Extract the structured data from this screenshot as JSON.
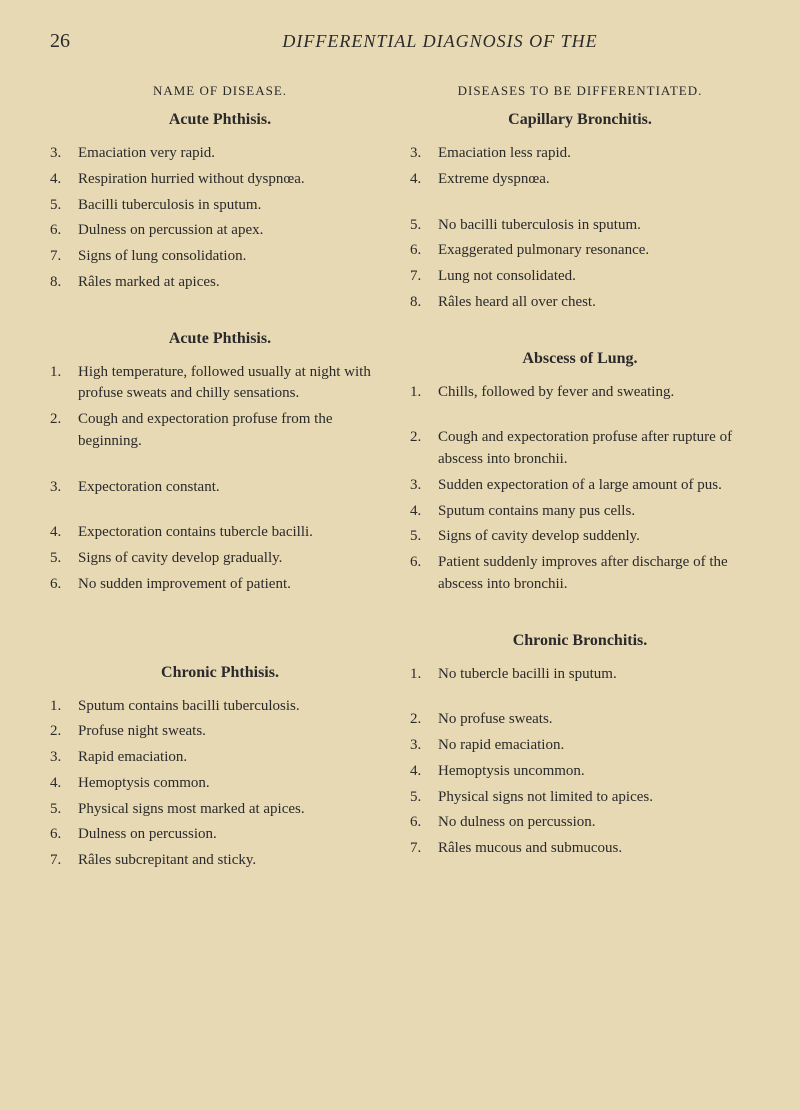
{
  "page_number": "26",
  "page_title": "DIFFERENTIAL DIAGNOSIS OF THE",
  "left_column_header": "NAME OF DISEASE.",
  "right_column_header": "DISEASES TO BE DIFFERENTIATED.",
  "section1": {
    "left_heading": "Acute Phthisis.",
    "right_heading": "Capillary Bronchitis.",
    "left_items": [
      {
        "num": "3.",
        "text": "Emaciation very rapid."
      },
      {
        "num": "4.",
        "text": "Respiration hurried without dyspnœa."
      },
      {
        "num": "5.",
        "text": "Bacilli tuberculosis in sputum."
      },
      {
        "num": "6.",
        "text": "Dulness on percussion at apex."
      },
      {
        "num": "7.",
        "text": "Signs of lung consolidation."
      },
      {
        "num": "8.",
        "text": "Râles marked at apices."
      }
    ],
    "right_items": [
      {
        "num": "3.",
        "text": "Emaciation less rapid."
      },
      {
        "num": "4.",
        "text": "Extreme dyspnœa."
      },
      {
        "num": "5.",
        "text": "No bacilli tuberculosis in sputum."
      },
      {
        "num": "6.",
        "text": "Exaggerated pulmonary resonance."
      },
      {
        "num": "7.",
        "text": "Lung not consolidated."
      },
      {
        "num": "8.",
        "text": "Râles heard all over chest."
      }
    ]
  },
  "section2": {
    "left_heading": "Acute Phthisis.",
    "right_heading": "Abscess of Lung.",
    "left_items": [
      {
        "num": "1.",
        "text": "High temperature, followed usually at night with profuse sweats and chilly sensations."
      },
      {
        "num": "2.",
        "text": "Cough and expectoration profuse from the beginning."
      },
      {
        "num": "3.",
        "text": "Expectoration constant."
      },
      {
        "num": "4.",
        "text": "Expectoration contains tubercle bacilli."
      },
      {
        "num": "5.",
        "text": "Signs of cavity develop gradually."
      },
      {
        "num": "6.",
        "text": "No sudden improvement of patient."
      }
    ],
    "right_items": [
      {
        "num": "1.",
        "text": "Chills, followed by fever and sweating."
      },
      {
        "num": "2.",
        "text": "Cough and expectoration profuse after rupture of abscess into bronchii."
      },
      {
        "num": "3.",
        "text": "Sudden expectoration of a large amount of pus."
      },
      {
        "num": "4.",
        "text": "Sputum contains many pus cells."
      },
      {
        "num": "5.",
        "text": "Signs of cavity develop suddenly."
      },
      {
        "num": "6.",
        "text": "Patient suddenly improves after discharge of the abscess into bronchii."
      }
    ]
  },
  "section3": {
    "left_heading": "Chronic Phthisis.",
    "right_heading": "Chronic Bronchitis.",
    "left_items": [
      {
        "num": "1.",
        "text": "Sputum contains bacilli tuberculosis."
      },
      {
        "num": "2.",
        "text": "Profuse night sweats."
      },
      {
        "num": "3.",
        "text": "Rapid emaciation."
      },
      {
        "num": "4.",
        "text": "Hemoptysis common."
      },
      {
        "num": "5.",
        "text": "Physical signs most marked at apices."
      },
      {
        "num": "6.",
        "text": "Dulness on percussion."
      },
      {
        "num": "7.",
        "text": "Râles subcrepitant and sticky."
      }
    ],
    "right_items": [
      {
        "num": "1.",
        "text": "No tubercle bacilli in sputum."
      },
      {
        "num": "2.",
        "text": "No profuse sweats."
      },
      {
        "num": "3.",
        "text": "No rapid emaciation."
      },
      {
        "num": "4.",
        "text": "Hemoptysis uncommon."
      },
      {
        "num": "5.",
        "text": "Physical signs not limited to apices."
      },
      {
        "num": "6.",
        "text": "No dulness on percussion."
      },
      {
        "num": "7.",
        "text": "Râles mucous and submucous."
      }
    ]
  },
  "colors": {
    "background": "#e8d9b5",
    "text": "#2a2a2a"
  },
  "fonts": {
    "body_size": 15,
    "heading_size": 16,
    "header_size": 13,
    "page_number_size": 20,
    "title_size": 18
  }
}
